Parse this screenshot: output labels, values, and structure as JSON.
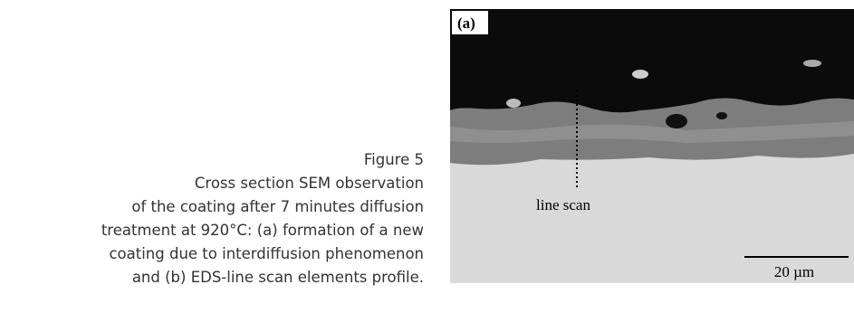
{
  "caption": {
    "label": "Figure 5",
    "lines": [
      "Cross section SEM observation",
      "of the coating after 7 minutes diffusion",
      "treatment at 920°C: (a) formation of a new",
      "coating due to interdiffusion phenomenon",
      "and (b) EDS-line scan elements profile."
    ]
  },
  "image": {
    "panel_label": "(a)",
    "annotation": "line scan",
    "scale_bar": "20 µm"
  }
}
